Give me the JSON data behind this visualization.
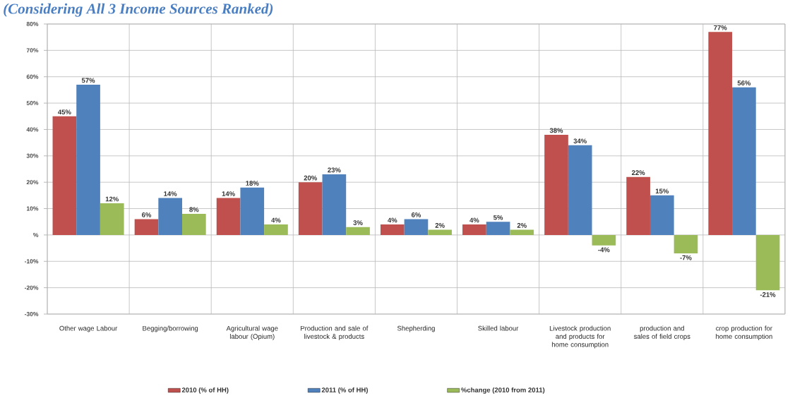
{
  "chart_data": {
    "type": "bar",
    "title": "(Considering All 3 Income Sources Ranked)",
    "categories": [
      "Other wage Labour",
      "Begging/borrowing",
      "Agricultural wage labour (Opium)",
      "Production and sale of livestock & products",
      "Shepherding",
      "Skilled labour",
      "Livestock production and products for home consumption",
      "production and sales of field crops",
      "crop production for home consumption"
    ],
    "series": [
      {
        "name": "2010 (% of HH)",
        "color": "#c0504d",
        "values": [
          45,
          6,
          14,
          20,
          4,
          4,
          38,
          22,
          77
        ],
        "value_labels": [
          "45%",
          "6%",
          "14%",
          "20%",
          "4%",
          "4%",
          "38%",
          "22%",
          "77%"
        ]
      },
      {
        "name": "2011 (% of HH)",
        "color": "#4f81bd",
        "values": [
          57,
          14,
          18,
          23,
          6,
          5,
          34,
          15,
          56
        ],
        "value_labels": [
          "57%",
          "14%",
          "18%",
          "23%",
          "6%",
          "5%",
          "34%",
          "15%",
          "56%"
        ]
      },
      {
        "name": "%change (2010 from 2011)",
        "color": "#9bbb59",
        "values": [
          12,
          8,
          4,
          3,
          2,
          2,
          -4,
          -7,
          -21
        ],
        "value_labels": [
          "12%",
          "8%",
          "4%",
          "3%",
          "2%",
          "2%",
          "-4%",
          "-7%",
          "-21%"
        ]
      }
    ],
    "ylim": [
      -30,
      80
    ],
    "yticks": [
      {
        "value": -30,
        "label": "-30%"
      },
      {
        "value": -20,
        "label": "-20%"
      },
      {
        "value": -10,
        "label": "-10%"
      },
      {
        "value": 0,
        "label": "%"
      },
      {
        "value": 10,
        "label": "10%"
      },
      {
        "value": 20,
        "label": "20%"
      },
      {
        "value": 30,
        "label": "30%"
      },
      {
        "value": 40,
        "label": "40%"
      },
      {
        "value": 50,
        "label": "50%"
      },
      {
        "value": 60,
        "label": "60%"
      },
      {
        "value": 70,
        "label": "70%"
      },
      {
        "value": 80,
        "label": "80%"
      }
    ],
    "grid": true,
    "legend": "bottom"
  }
}
